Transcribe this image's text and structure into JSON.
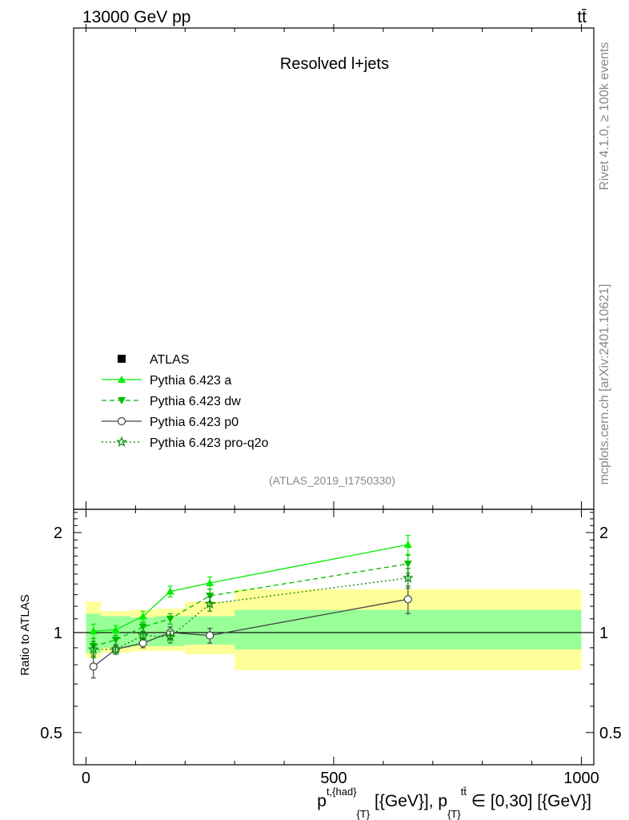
{
  "header": {
    "left": "13000 GeV pp",
    "right": "tt̄"
  },
  "side_labels": {
    "rivet": "Rivet 4.1.0, ≥ 100k events",
    "mcplots": "mcplots.cern.ch [arXiv:2401.10621]"
  },
  "main_panel": {
    "title": "Resolved l+jets",
    "analysis_id": "(ATLAS_2019_I1750330)"
  },
  "legend": [
    {
      "label": "ATLAS",
      "color": "#000000",
      "marker": "square",
      "dash": "none"
    },
    {
      "label": "Pythia 6.423 a",
      "color": "#00ee00",
      "marker": "triangle-up",
      "dash": "solid"
    },
    {
      "label": "Pythia 6.423 dw",
      "color": "#00bb00",
      "marker": "triangle-down",
      "dash": "dashed"
    },
    {
      "label": "Pythia 6.423 p0",
      "color": "#444444",
      "marker": "circle-open",
      "dash": "solid"
    },
    {
      "label": "Pythia 6.423 pro-q2o",
      "color": "#008800",
      "marker": "star-open",
      "dash": "dotted"
    }
  ],
  "chart_data": {
    "type": "line",
    "ylabel": "Ratio to ATLAS",
    "xlabel": {
      "p": "p",
      "sup1": "t,{had}",
      "sub1": "{T}",
      "mid": " [{GeV}], p",
      "sub2": "{T}",
      "sup2": "tt̄",
      "end": " ∈ [0,30] [{GeV}]"
    },
    "xlim": [
      -25,
      1025
    ],
    "ylim_log": [
      0.4,
      2.35
    ],
    "x_ticks": [
      0,
      500,
      1000
    ],
    "x_tick_labels": [
      "0",
      "500",
      "1000"
    ],
    "y_ticks": [
      0.5,
      1,
      2
    ],
    "y_tick_labels": [
      "0.5",
      "1",
      "2"
    ],
    "bins": [
      {
        "lo": 0,
        "hi": 30,
        "stat": [
          0.87,
          1.14
        ],
        "total": [
          0.84,
          1.24
        ]
      },
      {
        "lo": 30,
        "hi": 90,
        "stat": [
          0.9,
          1.12
        ],
        "total": [
          0.87,
          1.16
        ]
      },
      {
        "lo": 90,
        "hi": 140,
        "stat": [
          0.91,
          1.11
        ],
        "total": [
          0.88,
          1.17
        ]
      },
      {
        "lo": 140,
        "hi": 200,
        "stat": [
          0.91,
          1.12
        ],
        "total": [
          0.88,
          1.18
        ]
      },
      {
        "lo": 200,
        "hi": 300,
        "stat": [
          0.92,
          1.12
        ],
        "total": [
          0.86,
          1.24
        ]
      },
      {
        "lo": 300,
        "hi": 1000,
        "stat": [
          0.89,
          1.17
        ],
        "total": [
          0.77,
          1.35
        ]
      }
    ],
    "series": [
      {
        "name": "Pythia 6.423 a",
        "x": [
          15,
          60,
          115,
          170,
          250,
          650
        ],
        "y": [
          1.01,
          1.02,
          1.12,
          1.33,
          1.41,
          1.84
        ],
        "err": [
          0.05,
          0.03,
          0.04,
          0.05,
          0.06,
          0.12
        ]
      },
      {
        "name": "Pythia 6.423 dw",
        "x": [
          15,
          60,
          115,
          170,
          250,
          650
        ],
        "y": [
          0.91,
          0.95,
          1.04,
          1.1,
          1.29,
          1.61
        ],
        "err": [
          0.05,
          0.03,
          0.03,
          0.04,
          0.06,
          0.1
        ]
      },
      {
        "name": "Pythia 6.423 p0",
        "x": [
          15,
          60,
          115,
          170,
          250,
          650
        ],
        "y": [
          0.79,
          0.89,
          0.93,
          1.0,
          0.98,
          1.26
        ],
        "err": [
          0.06,
          0.03,
          0.03,
          0.04,
          0.05,
          0.12
        ]
      },
      {
        "name": "Pythia 6.423 pro-q2o",
        "x": [
          15,
          60,
          115,
          170,
          250,
          650
        ],
        "y": [
          0.89,
          0.89,
          0.98,
          0.97,
          1.22,
          1.46
        ],
        "err": [
          0.05,
          0.03,
          0.03,
          0.04,
          0.06,
          0.1
        ]
      }
    ]
  },
  "colors": {
    "band_stat": "#99ff99",
    "band_total": "#ffff99",
    "reference_line": "#000000"
  }
}
